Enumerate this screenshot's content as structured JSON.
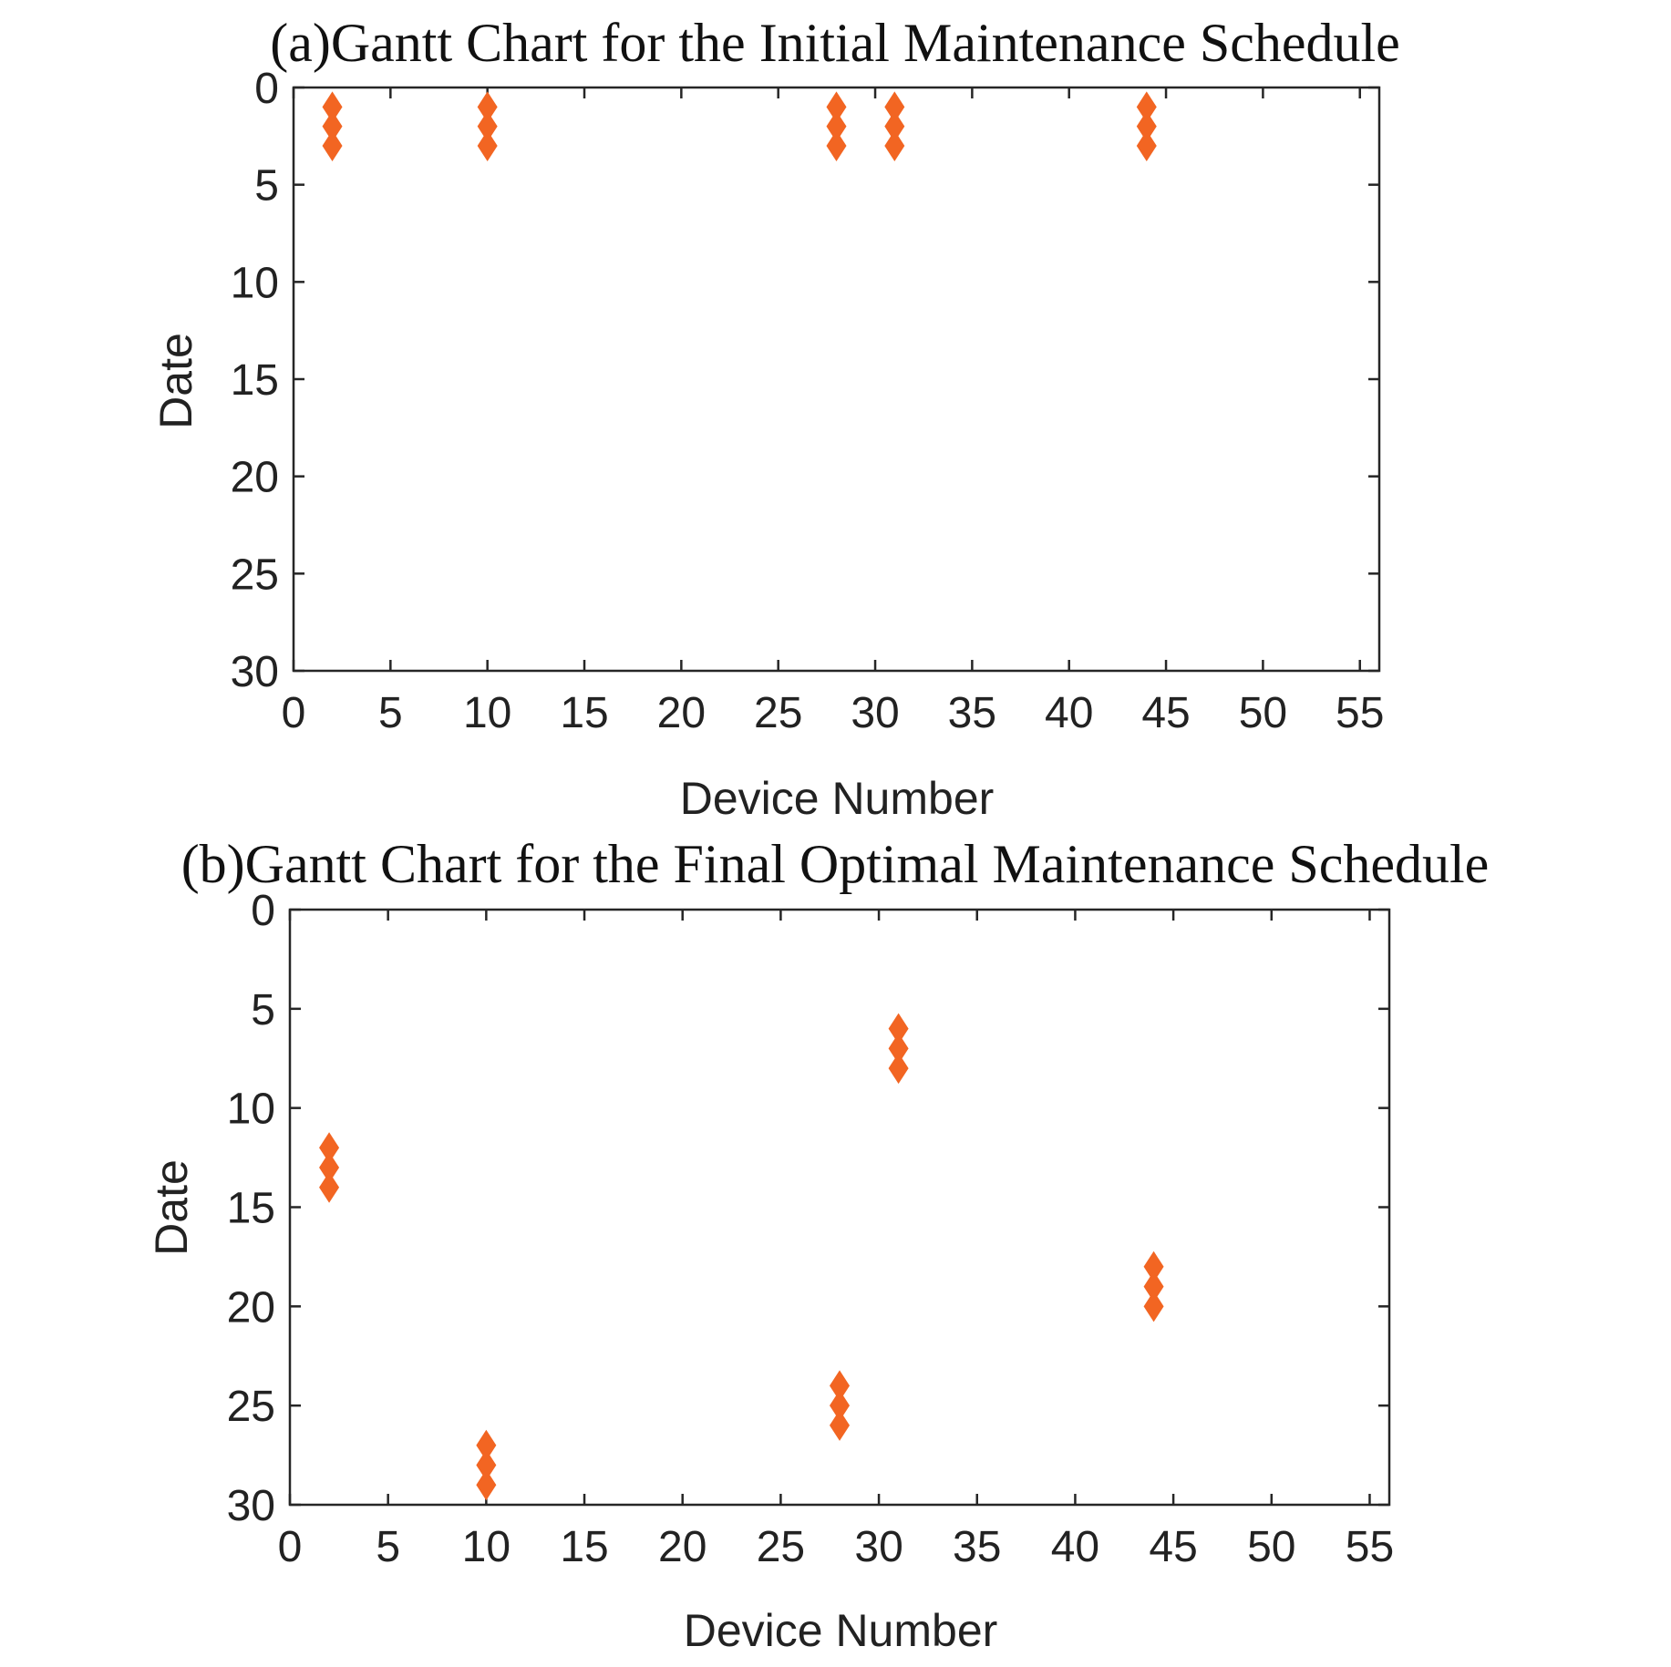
{
  "chart_data": [
    {
      "type": "scatter",
      "title": "(a)Gantt Chart for the Initial Maintenance Schedule",
      "xlabel": "Device Number",
      "ylabel": "Date",
      "xlim": [
        0,
        56
      ],
      "ylim": [
        0,
        30
      ],
      "y_reversed": true,
      "xticks": [
        0,
        5,
        10,
        15,
        20,
        25,
        30,
        35,
        40,
        45,
        50,
        55
      ],
      "yticks": [
        0,
        5,
        10,
        15,
        20,
        25,
        30
      ],
      "grid": true,
      "minor_grid": true,
      "marker": "diamond",
      "series": [
        {
          "color": "#f26522",
          "points": [
            {
              "x": 2,
              "y": 1
            },
            {
              "x": 2,
              "y": 2
            },
            {
              "x": 2,
              "y": 3
            },
            {
              "x": 10,
              "y": 1
            },
            {
              "x": 10,
              "y": 2
            },
            {
              "x": 10,
              "y": 3
            },
            {
              "x": 28,
              "y": 1
            },
            {
              "x": 28,
              "y": 2
            },
            {
              "x": 28,
              "y": 3
            },
            {
              "x": 31,
              "y": 1
            },
            {
              "x": 31,
              "y": 2
            },
            {
              "x": 31,
              "y": 3
            },
            {
              "x": 44,
              "y": 1
            },
            {
              "x": 44,
              "y": 2
            },
            {
              "x": 44,
              "y": 3
            }
          ]
        }
      ]
    },
    {
      "type": "scatter",
      "title": "(b)Gantt Chart for the Final Optimal Maintenance Schedule",
      "xlabel": "Device Number",
      "ylabel": "Date",
      "xlim": [
        0,
        56
      ],
      "ylim": [
        0,
        30
      ],
      "y_reversed": true,
      "xticks": [
        0,
        5,
        10,
        15,
        20,
        25,
        30,
        35,
        40,
        45,
        50,
        55
      ],
      "yticks": [
        0,
        5,
        10,
        15,
        20,
        25,
        30
      ],
      "grid": true,
      "minor_grid": true,
      "marker": "diamond",
      "series": [
        {
          "color": "#f26522",
          "points": [
            {
              "x": 2,
              "y": 12
            },
            {
              "x": 2,
              "y": 13
            },
            {
              "x": 2,
              "y": 14
            },
            {
              "x": 10,
              "y": 27
            },
            {
              "x": 10,
              "y": 28
            },
            {
              "x": 10,
              "y": 29
            },
            {
              "x": 28,
              "y": 24
            },
            {
              "x": 28,
              "y": 25
            },
            {
              "x": 28,
              "y": 26
            },
            {
              "x": 31,
              "y": 6
            },
            {
              "x": 31,
              "y": 7
            },
            {
              "x": 31,
              "y": 8
            },
            {
              "x": 44,
              "y": 18
            },
            {
              "x": 44,
              "y": 19
            },
            {
              "x": 44,
              "y": 20
            }
          ]
        }
      ]
    }
  ]
}
